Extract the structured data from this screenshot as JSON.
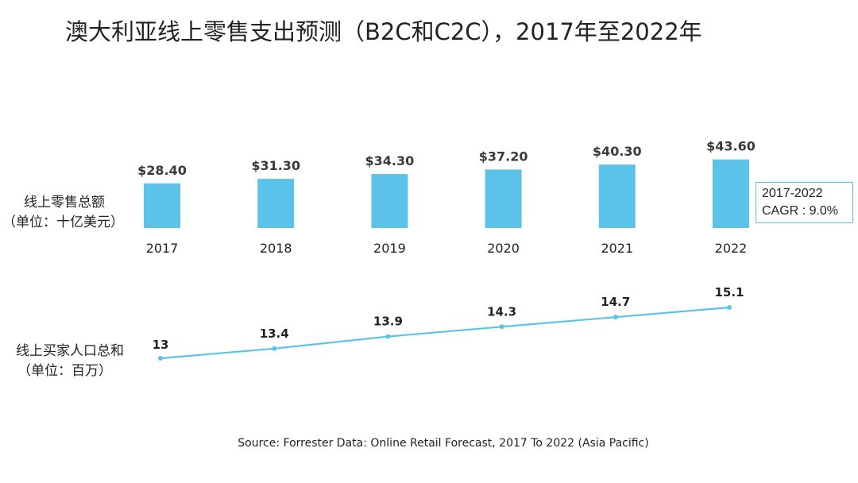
{
  "chart_data": [
    {
      "type": "bar",
      "title": "澳大利亚线上零售支出预测（B2C和C2C），2017年至2022年",
      "ylabel": [
        "线上零售总额",
        "（单位：十亿美元）"
      ],
      "categories": [
        "2017",
        "2018",
        "2019",
        "2020",
        "2021",
        "2022"
      ],
      "values": [
        28.4,
        31.3,
        34.3,
        37.2,
        40.3,
        43.6
      ],
      "data_labels": [
        "$28.40",
        "$31.30",
        "$34.30",
        "$37.20",
        "$40.30",
        "$43.60"
      ],
      "color": "#5bc3ea",
      "annotation": [
        "2017-2022",
        "CAGR : 9.0%"
      ],
      "grid": false
    },
    {
      "type": "line",
      "ylabel": [
        "线上买家人口总和",
        "（单位：百万）"
      ],
      "categories": [
        "2017",
        "2018",
        "2019",
        "2020",
        "2021",
        "2022"
      ],
      "values": [
        13,
        13.4,
        13.9,
        14.3,
        14.7,
        15.1
      ],
      "data_labels": [
        "13",
        "13.4",
        "13.9",
        "14.3",
        "14.7",
        "15.1"
      ],
      "color": "#5bc3ea",
      "grid": false
    }
  ],
  "source": "Source: Forrester Data: Online Retail Forecast, 2017 To 2022 (Asia Pacific)"
}
